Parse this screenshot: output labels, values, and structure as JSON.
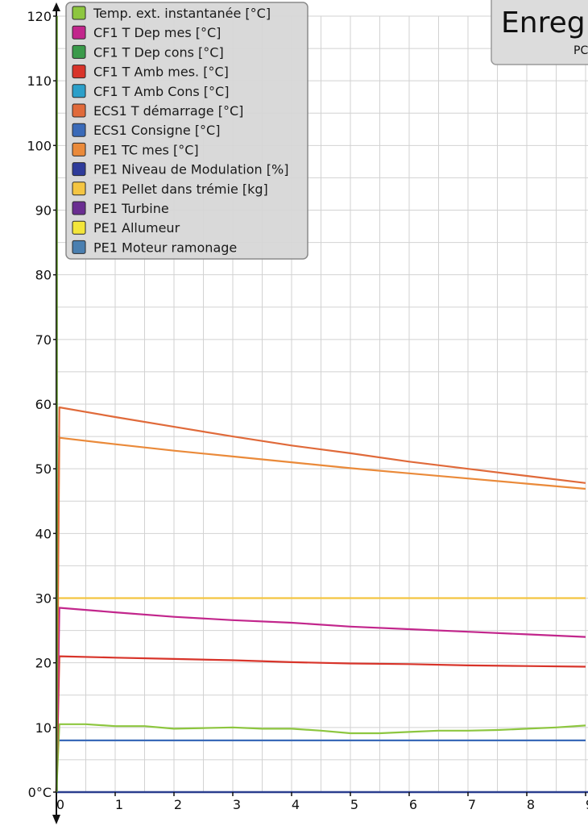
{
  "title_box": {
    "title": "Enregi",
    "subtitle": "PC"
  },
  "chart_data": {
    "type": "line",
    "xlabel": "",
    "ylabel": "",
    "xlim": [
      0,
      9
    ],
    "ylim": [
      0,
      120
    ],
    "x_ticks": [
      "0",
      "1",
      "2",
      "3",
      "4",
      "5",
      "6",
      "7",
      "8",
      "9"
    ],
    "y_ticks": [
      {
        "value": 0,
        "label": "0°C"
      },
      {
        "value": 10,
        "label": "10"
      },
      {
        "value": 20,
        "label": "20"
      },
      {
        "value": 30,
        "label": "30"
      },
      {
        "value": 40,
        "label": "40"
      },
      {
        "value": 50,
        "label": "50"
      },
      {
        "value": 60,
        "label": "60"
      },
      {
        "value": 70,
        "label": "70"
      },
      {
        "value": 80,
        "label": "80"
      },
      {
        "value": 90,
        "label": "90"
      },
      {
        "value": 100,
        "label": "100"
      },
      {
        "value": 110,
        "label": "110"
      },
      {
        "value": 120,
        "label": "120"
      }
    ],
    "grid": true,
    "legend_position": "top-left",
    "series": [
      {
        "name": "Temp. ext. instantanée [°C]",
        "color": "#8dc63f",
        "x": [
          0,
          0.05,
          0.5,
          1,
          1.5,
          2,
          2.5,
          3,
          3.5,
          4,
          4.5,
          5,
          5.5,
          6,
          6.5,
          7,
          7.5,
          8,
          8.5,
          9
        ],
        "y": [
          0,
          10.5,
          10.5,
          10.2,
          10.2,
          9.8,
          9.9,
          10.0,
          9.8,
          9.8,
          9.5,
          9.1,
          9.1,
          9.3,
          9.5,
          9.5,
          9.6,
          9.8,
          10.0,
          10.3
        ]
      },
      {
        "name": "CF1 T Dep mes [°C]",
        "color": "#c2268c",
        "x": [
          0,
          0.05,
          1,
          2,
          3,
          4,
          5,
          6,
          7,
          8,
          9
        ],
        "y": [
          0,
          28.5,
          27.8,
          27.1,
          26.6,
          26.2,
          25.6,
          25.2,
          24.8,
          24.4,
          24.0
        ]
      },
      {
        "name": "CF1 T Dep cons [°C]",
        "color": "#3a9a4a",
        "x": [],
        "y": []
      },
      {
        "name": "CF1 T Amb mes. [°C]",
        "color": "#d8342a",
        "x": [
          0,
          0.05,
          1,
          2,
          3,
          4,
          5,
          6,
          7,
          8,
          9
        ],
        "y": [
          0,
          21.0,
          20.8,
          20.6,
          20.4,
          20.1,
          19.9,
          19.8,
          19.6,
          19.5,
          19.4
        ]
      },
      {
        "name": "CF1 T Amb Cons [°C]",
        "color": "#2b9fc9",
        "x": [],
        "y": []
      },
      {
        "name": "ECS1 T démarrage [°C]",
        "color": "#e06a3a",
        "x": [
          0,
          0.05,
          1,
          2,
          3,
          4,
          5,
          6,
          7,
          8,
          9
        ],
        "y": [
          0,
          59.5,
          58.0,
          56.5,
          55.0,
          53.6,
          52.4,
          51.1,
          50.0,
          48.9,
          47.8
        ]
      },
      {
        "name": "ECS1 Consigne [°C]",
        "color": "#3a6ab8",
        "x": [
          0,
          9
        ],
        "y": [
          8,
          8
        ]
      },
      {
        "name": "PE1 TC mes [°C]",
        "color": "#ea8a3a",
        "x": [
          0,
          0.05,
          1,
          2,
          3,
          4,
          5,
          6,
          7,
          8,
          9
        ],
        "y": [
          0,
          54.8,
          53.8,
          52.8,
          51.9,
          51.0,
          50.1,
          49.3,
          48.5,
          47.7,
          46.9
        ]
      },
      {
        "name": "PE1 Niveau de Modulation [%]",
        "color": "#2e3b9a",
        "x": [],
        "y": []
      },
      {
        "name": "PE1 Pellet dans trémie [kg]",
        "color": "#f4c542",
        "x": [
          0,
          0.03,
          9
        ],
        "y": [
          0,
          30,
          30
        ]
      },
      {
        "name": "PE1 Turbine",
        "color": "#6a2d91",
        "x": [],
        "y": []
      },
      {
        "name": "PE1 Allumeur",
        "color": "#f3e53a",
        "x": [],
        "y": []
      },
      {
        "name": "PE1 Moteur ramonage",
        "color": "#4a7fb0",
        "x": [],
        "y": []
      }
    ]
  }
}
